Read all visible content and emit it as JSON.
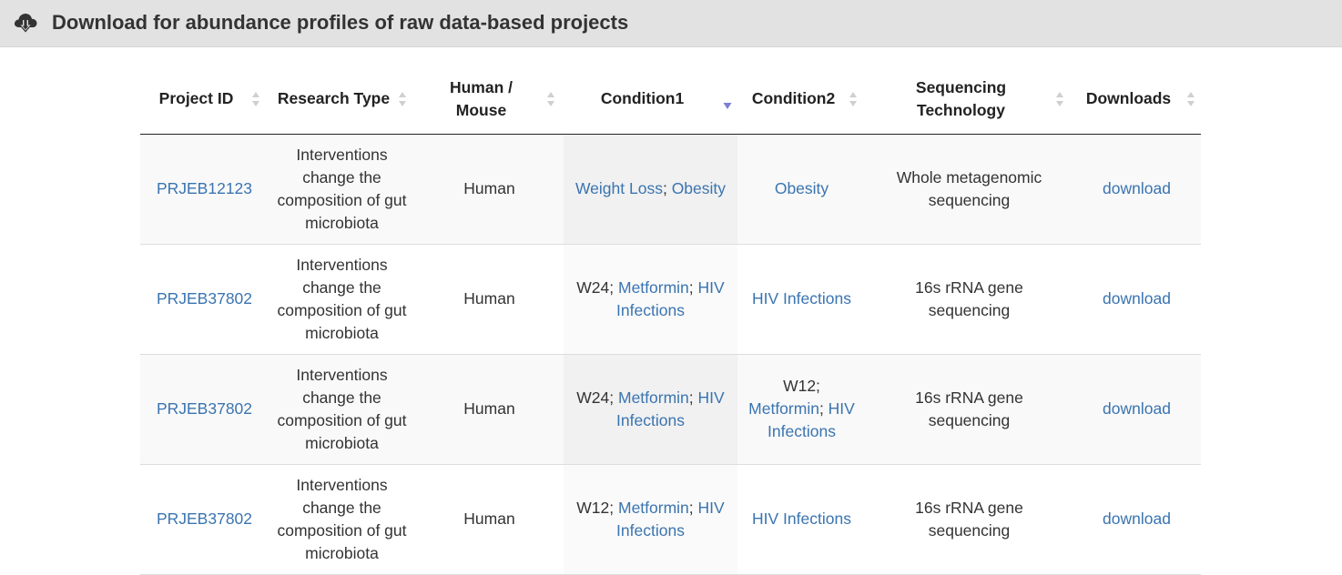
{
  "header": {
    "title": "Download for abundance profiles of raw data-based projects",
    "icon": "cloud-download-icon"
  },
  "colors": {
    "link": "#3a74b0",
    "header_bg": "#e2e2e2",
    "sort_active": "#7b7fd6",
    "sort_inactive": "#cfcfcf"
  },
  "table": {
    "columns": [
      {
        "label": "Project ID",
        "sort": "none"
      },
      {
        "label": "Research Type",
        "sort": "none"
      },
      {
        "label": "Human / Mouse",
        "sort": "none"
      },
      {
        "label": "Condition1",
        "sort": "descending"
      },
      {
        "label": "Condition2",
        "sort": "none"
      },
      {
        "label": "Sequencing Technology",
        "sort": "none"
      },
      {
        "label": "Downloads",
        "sort": "none"
      }
    ],
    "rows": [
      {
        "project_id": "PRJEB12123",
        "research_type": "Interventions change the composition of gut microbiota",
        "host": "Human",
        "condition1": [
          {
            "text": "Weight Loss",
            "link": true
          },
          {
            "text": "; ",
            "link": false
          },
          {
            "text": "Obesity",
            "link": true
          }
        ],
        "condition2": [
          {
            "text": "Obesity",
            "link": true
          }
        ],
        "technology": "Whole metagenomic sequencing",
        "download": "download"
      },
      {
        "project_id": "PRJEB37802",
        "research_type": "Interventions change the composition of gut microbiota",
        "host": "Human",
        "condition1": [
          {
            "text": "W24; ",
            "link": false
          },
          {
            "text": "Metformin",
            "link": true
          },
          {
            "text": "; ",
            "link": false
          },
          {
            "text": "HIV Infections",
            "link": true
          }
        ],
        "condition2": [
          {
            "text": "HIV Infections",
            "link": true
          }
        ],
        "technology": "16s rRNA gene sequencing",
        "download": "download"
      },
      {
        "project_id": "PRJEB37802",
        "research_type": "Interventions change the composition of gut microbiota",
        "host": "Human",
        "condition1": [
          {
            "text": "W24; ",
            "link": false
          },
          {
            "text": "Metformin",
            "link": true
          },
          {
            "text": "; ",
            "link": false
          },
          {
            "text": "HIV Infections",
            "link": true
          }
        ],
        "condition2": [
          {
            "text": "W12; ",
            "link": false
          },
          {
            "text": "Metformin",
            "link": true
          },
          {
            "text": "; ",
            "link": false
          },
          {
            "text": "HIV Infections",
            "link": true
          }
        ],
        "technology": "16s rRNA gene sequencing",
        "download": "download"
      },
      {
        "project_id": "PRJEB37802",
        "research_type": "Interventions change the composition of gut microbiota",
        "host": "Human",
        "condition1": [
          {
            "text": "W12; ",
            "link": false
          },
          {
            "text": "Metformin",
            "link": true
          },
          {
            "text": "; ",
            "link": false
          },
          {
            "text": "HIV Infections",
            "link": true
          }
        ],
        "condition2": [
          {
            "text": "HIV Infections",
            "link": true
          }
        ],
        "technology": "16s rRNA gene sequencing",
        "download": "download"
      }
    ]
  }
}
